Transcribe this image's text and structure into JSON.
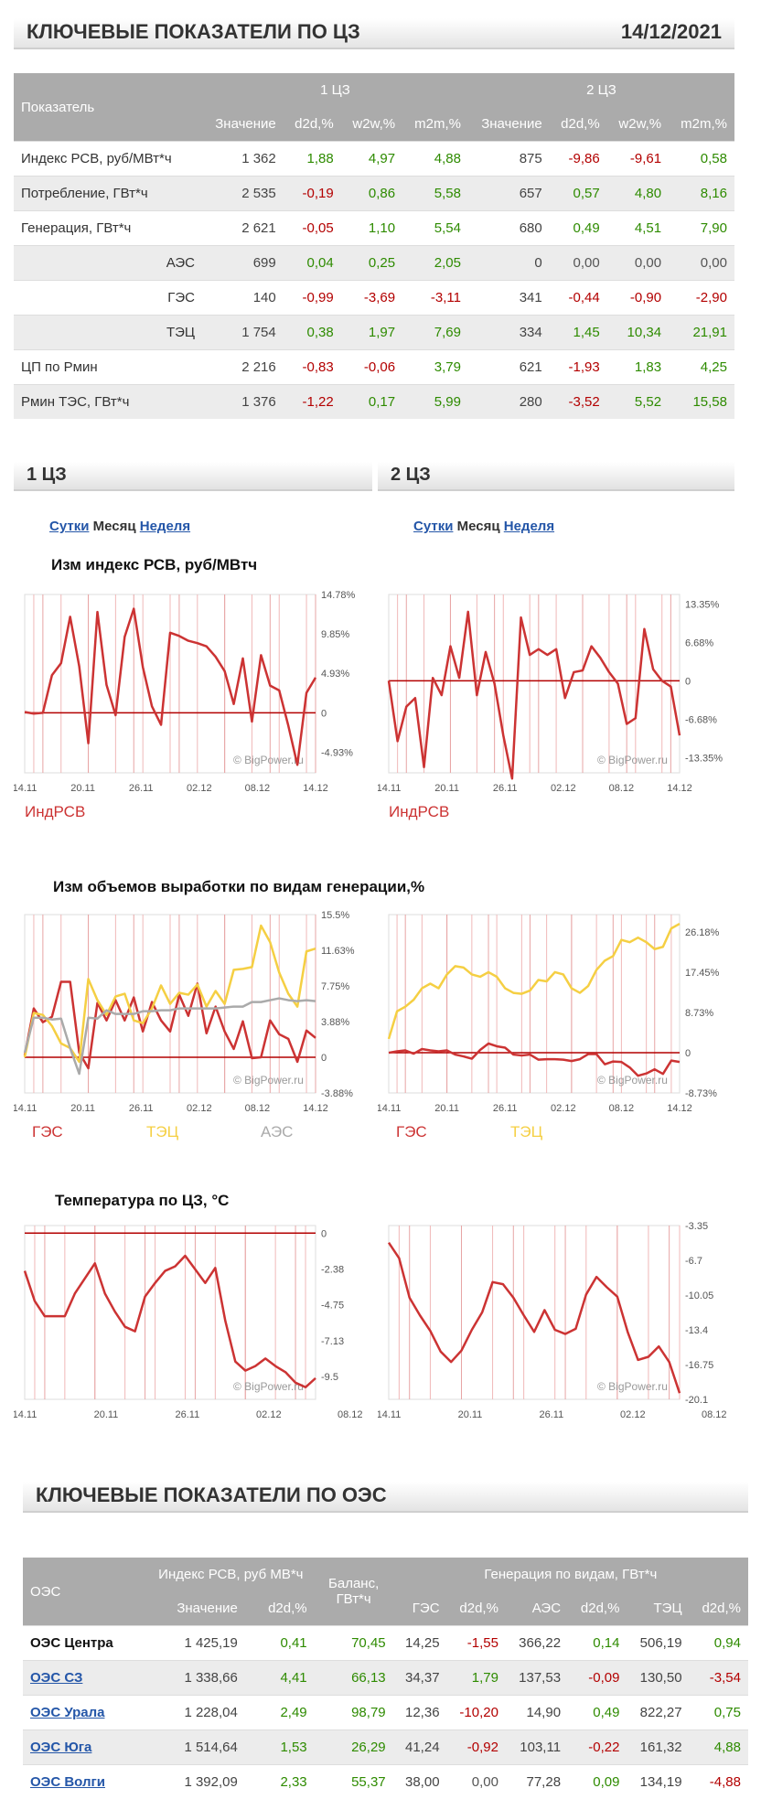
{
  "header": {
    "title": "КЛЮЧЕВЫЕ ПОКАЗАТЕЛИ ПО ЦЗ",
    "date": "14/12/2021"
  },
  "key_table": {
    "col_indicator": "Показатель",
    "zone1": "1 ЦЗ",
    "zone2": "2 ЦЗ",
    "sub_headers": [
      "Значение",
      "d2d,%",
      "w2w,%",
      "m2m,%",
      "Значение",
      "d2d,%",
      "w2w,%",
      "m2m,%"
    ],
    "rows": [
      {
        "label": "Индекс РСВ, руб/МВт*ч",
        "indent": false,
        "v1": "1 362",
        "a1": "1,88",
        "b1": "4,97",
        "c1": "4,88",
        "v2": "875",
        "a2": "-9,86",
        "b2": "-9,61",
        "c2": "0,58"
      },
      {
        "label": "Потребление, ГВт*ч",
        "indent": false,
        "v1": "2 535",
        "a1": "-0,19",
        "b1": "0,86",
        "c1": "5,58",
        "v2": "657",
        "a2": "0,57",
        "b2": "4,80",
        "c2": "8,16"
      },
      {
        "label": "Генерация, ГВт*ч",
        "indent": false,
        "v1": "2 621",
        "a1": "-0,05",
        "b1": "1,10",
        "c1": "5,54",
        "v2": "680",
        "a2": "0,49",
        "b2": "4,51",
        "c2": "7,90"
      },
      {
        "label": "АЭС",
        "indent": true,
        "v1": "699",
        "a1": "0,04",
        "b1": "0,25",
        "c1": "2,05",
        "v2": "0",
        "a2": "0,00",
        "b2": "0,00",
        "c2": "0,00"
      },
      {
        "label": "ГЭС",
        "indent": true,
        "v1": "140",
        "a1": "-0,99",
        "b1": "-3,69",
        "c1": "-3,11",
        "v2": "341",
        "a2": "-0,44",
        "b2": "-0,90",
        "c2": "-2,90"
      },
      {
        "label": "ТЭЦ",
        "indent": true,
        "v1": "1 754",
        "a1": "0,38",
        "b1": "1,97",
        "c1": "7,69",
        "v2": "334",
        "a2": "1,45",
        "b2": "10,34",
        "c2": "21,91"
      },
      {
        "label": "ЦП по Рмин",
        "indent": false,
        "v1": "2 216",
        "a1": "-0,83",
        "b1": "-0,06",
        "c1": "3,79",
        "v2": "621",
        "a2": "-1,93",
        "b2": "1,83",
        "c2": "4,25"
      },
      {
        "label": "Рмин ТЭС, ГВт*ч",
        "indent": false,
        "v1": "1 376",
        "a1": "-1,22",
        "b1": "0,17",
        "c1": "5,99",
        "v2": "280",
        "a2": "-3,52",
        "b2": "5,52",
        "c2": "15,58"
      }
    ]
  },
  "sections": {
    "z1": "1 ЦЗ",
    "z2": "2 ЦЗ"
  },
  "period_links": {
    "day": "Сутки",
    "month": "Месяц",
    "week": "Неделя"
  },
  "chart_titles": {
    "index": "Изм индекс РСВ, руб/МВтч",
    "gen": "Изм объемов выработки по видам генерации,%",
    "temp": "Температура по ЦЗ, °С"
  },
  "watermark": "© BigPower.ru",
  "chart_data": [
    {
      "type": "line",
      "title": "Изм индекс РСВ, руб/МВтч",
      "zone": "1 ЦЗ",
      "x_ticks": [
        "14.11",
        "20.11",
        "26.11",
        "02.12",
        "08.12",
        "14.12"
      ],
      "y_ticks": [
        "14.78%",
        "9.85%",
        "4.93%",
        "0",
        "-4.93%"
      ],
      "ylim": [
        -7.5,
        14.78
      ],
      "series": [
        {
          "name": "ИндРСВ",
          "color": "#cc3333",
          "values": [
            0.1,
            -0.1,
            0.0,
            4.7,
            6.2,
            12.0,
            5.8,
            -3.8,
            12.6,
            3.5,
            -0.3,
            9.5,
            13.0,
            5.7,
            0.8,
            -1.5,
            10.0,
            9.6,
            9.0,
            8.7,
            8.3,
            7.0,
            5.2,
            1.1,
            6.8,
            -1.1,
            7.2,
            3.4,
            2.8,
            -1.6,
            -6.5,
            2.5,
            4.4
          ]
        }
      ]
    },
    {
      "type": "line",
      "title": "Изм индекс РСВ, руб/МВтч",
      "zone": "2 ЦЗ",
      "x_ticks": [
        "14.11",
        "20.11",
        "26.11",
        "02.12",
        "08.12",
        "14.12"
      ],
      "y_ticks": [
        "13.35%",
        "6.68%",
        "0",
        "-6.68%",
        "-13.35%"
      ],
      "ylim": [
        -16,
        15
      ],
      "series": [
        {
          "name": "ИндРСВ",
          "color": "#cc3333",
          "values": [
            0.0,
            -10.5,
            -4.5,
            -3.0,
            -15.0,
            0.5,
            -2.5,
            6.0,
            0.5,
            12.0,
            -2.5,
            5.0,
            -0.5,
            -9.5,
            -17.0,
            11.0,
            4.5,
            5.5,
            4.5,
            5.5,
            -3.0,
            1.5,
            1.8,
            6.0,
            4.0,
            1.5,
            -0.5,
            -7.5,
            -6.5,
            9.0,
            2.0,
            0.0,
            -1.0,
            -9.5
          ]
        }
      ]
    },
    {
      "type": "line",
      "title": "Изм объемов выработки по видам генерации,%",
      "zone": "1 ЦЗ",
      "x_ticks": [
        "14.11",
        "20.11",
        "26.11",
        "02.12",
        "08.12",
        "14.12"
      ],
      "y_ticks": [
        "15.5%",
        "11.63%",
        "7.75%",
        "3.88%",
        "0",
        "-3.88%"
      ],
      "ylim": [
        -3.88,
        15.5
      ],
      "series": [
        {
          "name": "ГЭС",
          "color": "#cc3333",
          "values": [
            0.2,
            5.3,
            3.8,
            4.4,
            8.2,
            8.2,
            0.5,
            -1.2,
            5.9,
            4.0,
            6.2,
            4.0,
            6.5,
            2.8,
            6.0,
            4.0,
            2.8,
            6.8,
            4.5,
            8.0,
            2.6,
            5.5,
            2.8,
            0.9,
            3.9,
            -0.1,
            0.0,
            4.0,
            2.5,
            2.0,
            -0.5,
            2.9,
            2.1
          ]
        },
        {
          "name": "ТЭЦ",
          "color": "#f5cf43",
          "values": [
            0.0,
            4.8,
            4.6,
            3.4,
            1.5,
            1.0,
            -0.5,
            8.5,
            6.2,
            4.6,
            6.6,
            6.9,
            4.0,
            3.7,
            5.3,
            7.8,
            5.8,
            7.0,
            6.8,
            7.9,
            5.5,
            7.2,
            5.8,
            9.5,
            9.6,
            9.8,
            14.3,
            12.5,
            9.2,
            6.9,
            5.5,
            11.5,
            11.8
          ]
        },
        {
          "name": "АЭС",
          "color": "#aaaaaa",
          "values": [
            0.5,
            4.3,
            4.3,
            4.1,
            4.2,
            1.0,
            -1.8,
            4.3,
            4.2,
            5.1,
            4.7,
            4.7,
            4.7,
            5.0,
            5.0,
            5.1,
            5.1,
            5.3,
            5.3,
            5.3,
            5.3,
            5.3,
            5.4,
            5.5,
            5.5,
            6.0,
            6.0,
            6.2,
            6.4,
            6.2,
            6.1,
            6.2,
            6.1
          ]
        }
      ]
    },
    {
      "type": "line",
      "title": "Изм объемов выработки по видам генерации,%",
      "zone": "2 ЦЗ",
      "x_ticks": [
        "14.11",
        "20.11",
        "26.11",
        "02.12",
        "08.12",
        "14.12"
      ],
      "y_ticks": [
        "26.18%",
        "17.45%",
        "8.73%",
        "0",
        "-8.73%"
      ],
      "ylim": [
        -8.73,
        30
      ],
      "series": [
        {
          "name": "ГЭС",
          "color": "#cc3333",
          "values": [
            0.0,
            0.3,
            0.5,
            -0.2,
            0.8,
            0.5,
            0.3,
            0.5,
            -0.4,
            -0.8,
            -1.3,
            0.6,
            2.0,
            1.4,
            1.1,
            -0.4,
            -0.6,
            -0.4,
            -1.5,
            -1.4,
            -1.4,
            -1.5,
            -1.8,
            -1.4,
            -0.3,
            -0.3,
            -2.5,
            -1.9,
            -2.0,
            -3.2,
            -5.0,
            -4.5,
            -3.6,
            -4.6,
            -1.7,
            -2.0
          ]
        },
        {
          "name": "ТЭЦ",
          "color": "#f5cf43",
          "values": [
            3.0,
            9.0,
            10.0,
            11.5,
            14.0,
            15.0,
            14.0,
            17.0,
            18.8,
            18.5,
            17.0,
            16.5,
            17.5,
            16.5,
            14.0,
            13.0,
            12.8,
            13.5,
            15.8,
            15.5,
            17.5,
            17.0,
            14.0,
            13.0,
            14.5,
            18.0,
            20.0,
            21.0,
            24.5,
            24.0,
            25.0,
            24.0,
            22.5,
            23.0,
            27.0,
            28.0
          ]
        }
      ]
    },
    {
      "type": "line",
      "title": "Температура по ЦЗ, °С",
      "zone": "1 ЦЗ",
      "x_ticks": [
        "14.11",
        "20.11",
        "26.11",
        "02.12",
        "08.12"
      ],
      "y_ticks": [
        "0",
        "-2.38",
        "-4.75",
        "-7.13",
        "-9.5"
      ],
      "ylim": [
        -11,
        0.5
      ],
      "series": [
        {
          "name": "Температура",
          "color": "#cc3333",
          "values": [
            -2.5,
            -4.5,
            -5.5,
            -5.5,
            -5.5,
            -4.0,
            -3.0,
            -2.0,
            -4.0,
            -5.2,
            -6.2,
            -6.5,
            -4.2,
            -3.3,
            -2.5,
            -2.2,
            -1.5,
            -2.4,
            -3.3,
            -2.3,
            -5.8,
            -8.5,
            -9.1,
            -8.8,
            -8.3,
            -8.8,
            -9.2,
            -9.9,
            -10.2,
            -9.6
          ]
        }
      ]
    },
    {
      "type": "line",
      "title": "Температура по ЦЗ, °С",
      "zone": "2 ЦЗ",
      "x_ticks": [
        "14.11",
        "20.11",
        "26.11",
        "02.12",
        "08.12"
      ],
      "y_ticks": [
        "-3.35",
        "-6.7",
        "-10.05",
        "-13.4",
        "-16.75",
        "-20.1"
      ],
      "ylim": [
        -20.1,
        -3.35
      ],
      "series": [
        {
          "name": "Температура",
          "color": "#cc3333",
          "values": [
            -5.0,
            -6.5,
            -10.3,
            -12.0,
            -13.5,
            -15.5,
            -16.5,
            -15.4,
            -13.4,
            -11.7,
            -8.8,
            -9.0,
            -10.3,
            -12.0,
            -13.6,
            -11.5,
            -13.4,
            -13.8,
            -13.3,
            -10.0,
            -8.3,
            -9.3,
            -10.2,
            -13.6,
            -16.3,
            -16.0,
            -15.0,
            -16.5,
            -19.5
          ]
        }
      ]
    }
  ],
  "oes": {
    "title": "КЛЮЧЕВЫЕ ПОКАЗАТЕЛИ ПО ОЭС",
    "col_oes": "ОЭС",
    "col_index": "Индекс РСВ, руб МВ*ч",
    "col_balance": "Баланс, ГВт*ч",
    "col_gen": "Генерация по видам, ГВт*ч",
    "sub_headers": [
      "Значение",
      "d2d,%",
      "ГЭС",
      "d2d,%",
      "АЭС",
      "d2d,%",
      "ТЭЦ",
      "d2d,%"
    ],
    "rows": [
      {
        "name": "ОЭС Центра",
        "link": false,
        "idx": "1 425,19",
        "idx_d": "0,41",
        "bal": "70,45",
        "ges": "14,25",
        "ges_d": "-1,55",
        "aes": "366,22",
        "aes_d": "0,14",
        "tec": "506,19",
        "tec_d": "0,94"
      },
      {
        "name": "ОЭС СЗ",
        "link": true,
        "idx": "1 338,66",
        "idx_d": "4,41",
        "bal": "66,13",
        "ges": "34,37",
        "ges_d": "1,79",
        "aes": "137,53",
        "aes_d": "-0,09",
        "tec": "130,50",
        "tec_d": "-3,54"
      },
      {
        "name": "ОЭС Урала",
        "link": true,
        "idx": "1 228,04",
        "idx_d": "2,49",
        "bal": "98,79",
        "ges": "12,36",
        "ges_d": "-10,20",
        "aes": "14,90",
        "aes_d": "0,49",
        "tec": "822,27",
        "tec_d": "0,75"
      },
      {
        "name": "ОЭС Юга",
        "link": true,
        "idx": "1 514,64",
        "idx_d": "1,53",
        "bal": "26,29",
        "ges": "41,24",
        "ges_d": "-0,92",
        "aes": "103,11",
        "aes_d": "-0,22",
        "tec": "161,32",
        "tec_d": "4,88"
      },
      {
        "name": "ОЭС Волги",
        "link": true,
        "idx": "1 392,09",
        "idx_d": "2,33",
        "bal": "55,37",
        "ges": "38,00",
        "ges_d": "0,00",
        "aes": "77,28",
        "aes_d": "0,09",
        "tec": "134,19",
        "tec_d": "-4,88"
      }
    ]
  }
}
